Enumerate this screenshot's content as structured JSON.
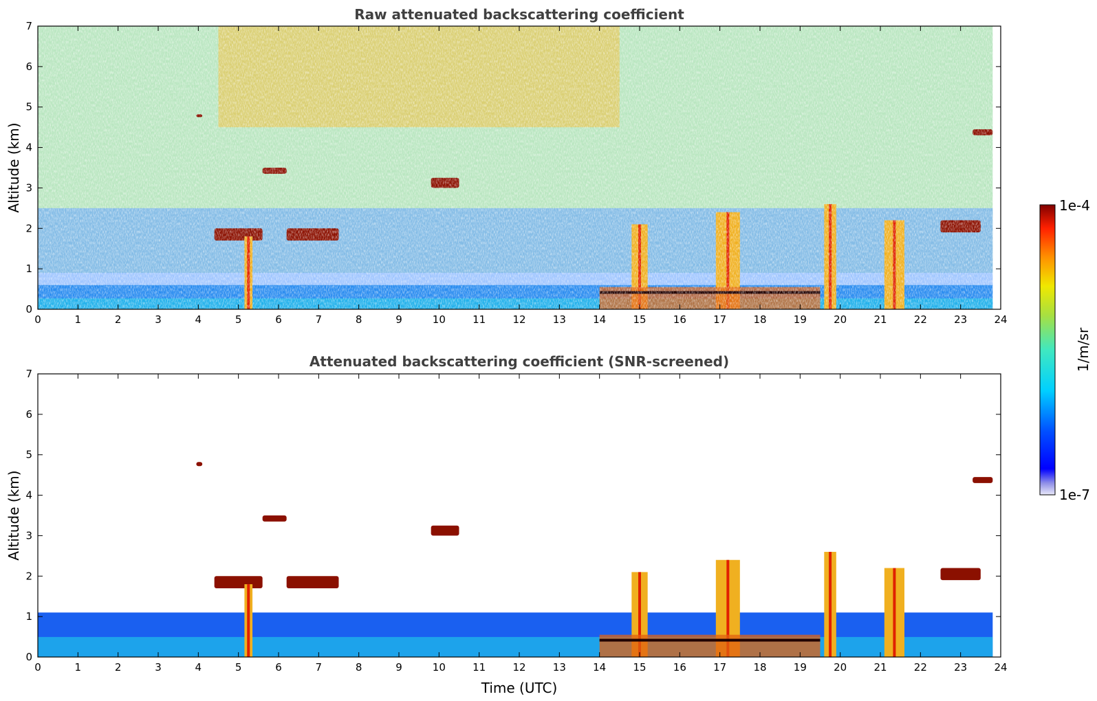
{
  "chart_data": [
    {
      "type": "heatmap",
      "title": "Raw attenuated backscattering coefficient",
      "xlabel": "",
      "ylabel": "Altitude (km)",
      "xlim": [
        0,
        24
      ],
      "ylim": [
        0,
        7
      ],
      "xticks": [
        "0",
        "1",
        "2",
        "3",
        "4",
        "5",
        "6",
        "7",
        "8",
        "9",
        "10",
        "11",
        "12",
        "13",
        "14",
        "15",
        "16",
        "17",
        "18",
        "19",
        "20",
        "21",
        "22",
        "23",
        "24"
      ],
      "yticks": [
        "0",
        "1",
        "2",
        "3",
        "4",
        "5",
        "6",
        "7"
      ],
      "grid": false,
      "features": [
        {
          "kind": "noise_gradient",
          "description_value": "noise increases with altitude"
        },
        {
          "kind": "boundary_layer",
          "x": [
            0,
            23.8
          ],
          "y_top_km": 0.6
        },
        {
          "kind": "cloud",
          "x": [
            5.6,
            6.2
          ],
          "y": [
            3.35,
            3.5
          ]
        },
        {
          "kind": "cloud",
          "x": [
            9.8,
            10.5
          ],
          "y": [
            3.0,
            3.25
          ]
        },
        {
          "kind": "cloud",
          "x": [
            23.3,
            23.8
          ],
          "y": [
            4.3,
            4.45
          ]
        },
        {
          "kind": "cloud",
          "x": [
            3.95,
            4.1
          ],
          "y": [
            4.75,
            4.82
          ]
        },
        {
          "kind": "cloud",
          "x": [
            6.2,
            7.5
          ],
          "y": [
            1.7,
            2.0
          ]
        },
        {
          "kind": "cloud",
          "x": [
            4.4,
            5.6
          ],
          "y": [
            1.7,
            2.0
          ]
        },
        {
          "kind": "cloud",
          "x": [
            22.5,
            23.5
          ],
          "y": [
            1.9,
            2.2
          ]
        },
        {
          "kind": "precip",
          "x": [
            5.15,
            5.35
          ],
          "y": [
            0,
            1.8
          ]
        },
        {
          "kind": "precip",
          "x": [
            14.8,
            15.2
          ],
          "y": [
            0,
            2.1
          ]
        },
        {
          "kind": "precip",
          "x": [
            16.9,
            17.5
          ],
          "y": [
            0,
            2.4
          ]
        },
        {
          "kind": "precip",
          "x": [
            19.6,
            19.9
          ],
          "y": [
            0,
            2.6
          ]
        },
        {
          "kind": "precip",
          "x": [
            21.1,
            21.6
          ],
          "y": [
            0,
            2.2
          ]
        },
        {
          "kind": "low_cloud_layer",
          "x": [
            14.0,
            19.5
          ],
          "y_km": 0.4
        }
      ]
    },
    {
      "type": "heatmap",
      "title": "Attenuated backscattering coefficient (SNR-screened)",
      "xlabel": "Time (UTC)",
      "ylabel": "Altitude (km)",
      "xlim": [
        0,
        24
      ],
      "ylim": [
        0,
        7
      ],
      "xticks": [
        "0",
        "1",
        "2",
        "3",
        "4",
        "5",
        "6",
        "7",
        "8",
        "9",
        "10",
        "11",
        "12",
        "13",
        "14",
        "15",
        "16",
        "17",
        "18",
        "19",
        "20",
        "21",
        "22",
        "23",
        "24"
      ],
      "yticks": [
        "0",
        "1",
        "2",
        "3",
        "4",
        "5",
        "6",
        "7"
      ],
      "grid": false,
      "features": [
        {
          "kind": "boundary_layer",
          "x": [
            0,
            23.8
          ],
          "y_top_km": 1.1
        },
        {
          "kind": "cloud",
          "x": [
            5.6,
            6.2
          ],
          "y": [
            3.35,
            3.5
          ]
        },
        {
          "kind": "cloud",
          "x": [
            9.8,
            10.5
          ],
          "y": [
            3.0,
            3.25
          ]
        },
        {
          "kind": "cloud",
          "x": [
            23.3,
            23.8
          ],
          "y": [
            4.3,
            4.45
          ]
        },
        {
          "kind": "cloud",
          "x": [
            3.95,
            4.1
          ],
          "y": [
            4.72,
            4.82
          ]
        },
        {
          "kind": "cloud",
          "x": [
            6.2,
            7.5
          ],
          "y": [
            1.7,
            2.0
          ]
        },
        {
          "kind": "cloud",
          "x": [
            4.4,
            5.6
          ],
          "y": [
            1.7,
            2.0
          ]
        },
        {
          "kind": "cloud",
          "x": [
            22.5,
            23.5
          ],
          "y": [
            1.9,
            2.2
          ]
        },
        {
          "kind": "precip",
          "x": [
            5.15,
            5.35
          ],
          "y": [
            0,
            1.8
          ]
        },
        {
          "kind": "precip",
          "x": [
            14.8,
            15.2
          ],
          "y": [
            0,
            2.1
          ]
        },
        {
          "kind": "precip",
          "x": [
            16.9,
            17.5
          ],
          "y": [
            0,
            2.4
          ]
        },
        {
          "kind": "precip",
          "x": [
            19.6,
            19.9
          ],
          "y": [
            0,
            2.6
          ]
        },
        {
          "kind": "precip",
          "x": [
            21.1,
            21.6
          ],
          "y": [
            0,
            2.2
          ]
        },
        {
          "kind": "low_cloud_layer",
          "x": [
            14.0,
            19.5
          ],
          "y_km": 0.4
        }
      ]
    }
  ],
  "colorbar": {
    "max_label": "1e-4",
    "min_label": "1e-7",
    "unit_label": "1/m/sr",
    "scale": "log"
  }
}
